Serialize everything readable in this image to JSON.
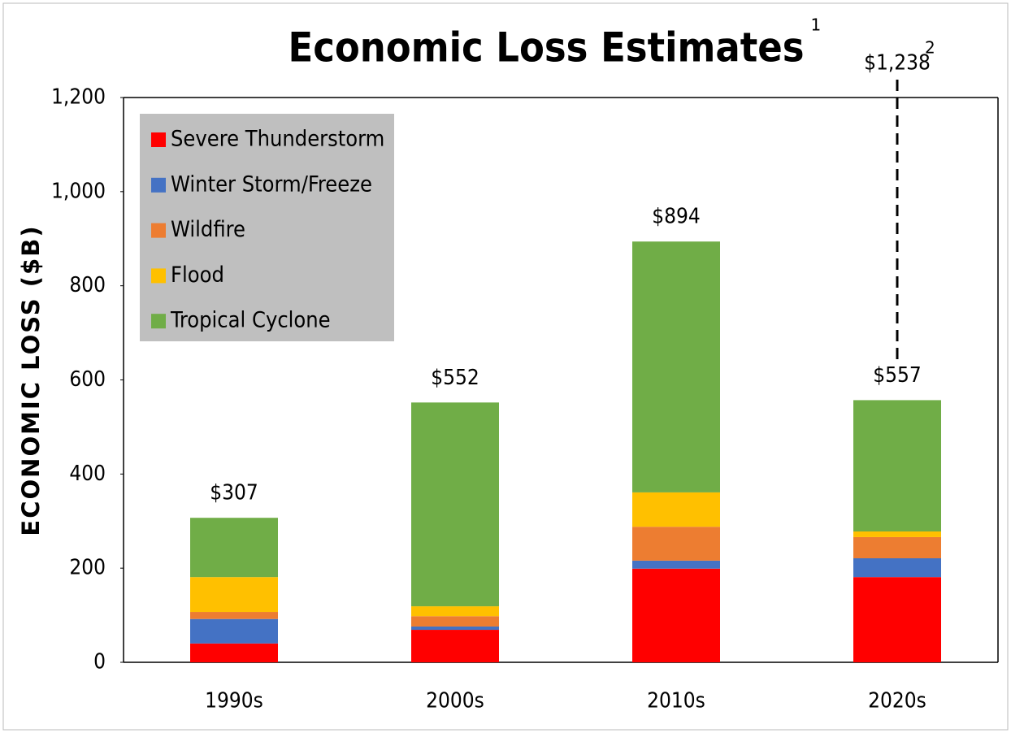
{
  "chart_data": {
    "type": "stacked_bar",
    "title": "Economic Loss Estimates",
    "title_footnote": "1",
    "ylabel": "ECONOMIC LOSS ($B)",
    "categories": [
      "1990s",
      "2000s",
      "2010s",
      "2020s"
    ],
    "series": [
      {
        "name": "Severe Thunderstorm",
        "color": "#ff0000",
        "values": [
          40,
          69,
          199,
          181
        ]
      },
      {
        "name": "Winter Storm/Freeze",
        "color": "#4472c4",
        "values": [
          52,
          7,
          17,
          40
        ]
      },
      {
        "name": "Wildfire",
        "color": "#ed7d31",
        "values": [
          15,
          22,
          72,
          45
        ]
      },
      {
        "name": "Flood",
        "color": "#ffc000",
        "values": [
          74,
          21,
          73,
          12
        ]
      },
      {
        "name": "Tropical Cyclone",
        "color": "#70ad47",
        "values": [
          126,
          433,
          533,
          279
        ]
      }
    ],
    "totals": [
      307,
      552,
      894,
      557
    ],
    "total_labels": [
      "$307",
      "$552",
      "$894",
      "$557"
    ],
    "annotation": {
      "text": "$1,238",
      "footnote": "2",
      "value": 1238,
      "category": 3
    },
    "ylim": [
      0,
      1200
    ],
    "yticks": [
      0,
      200,
      400,
      600,
      800,
      {
        "value": 1000,
        "label": "1,000"
      },
      {
        "value": 1200,
        "label": "1,200"
      }
    ],
    "legend": "upper left",
    "legend_background": "#bfbfbf"
  }
}
